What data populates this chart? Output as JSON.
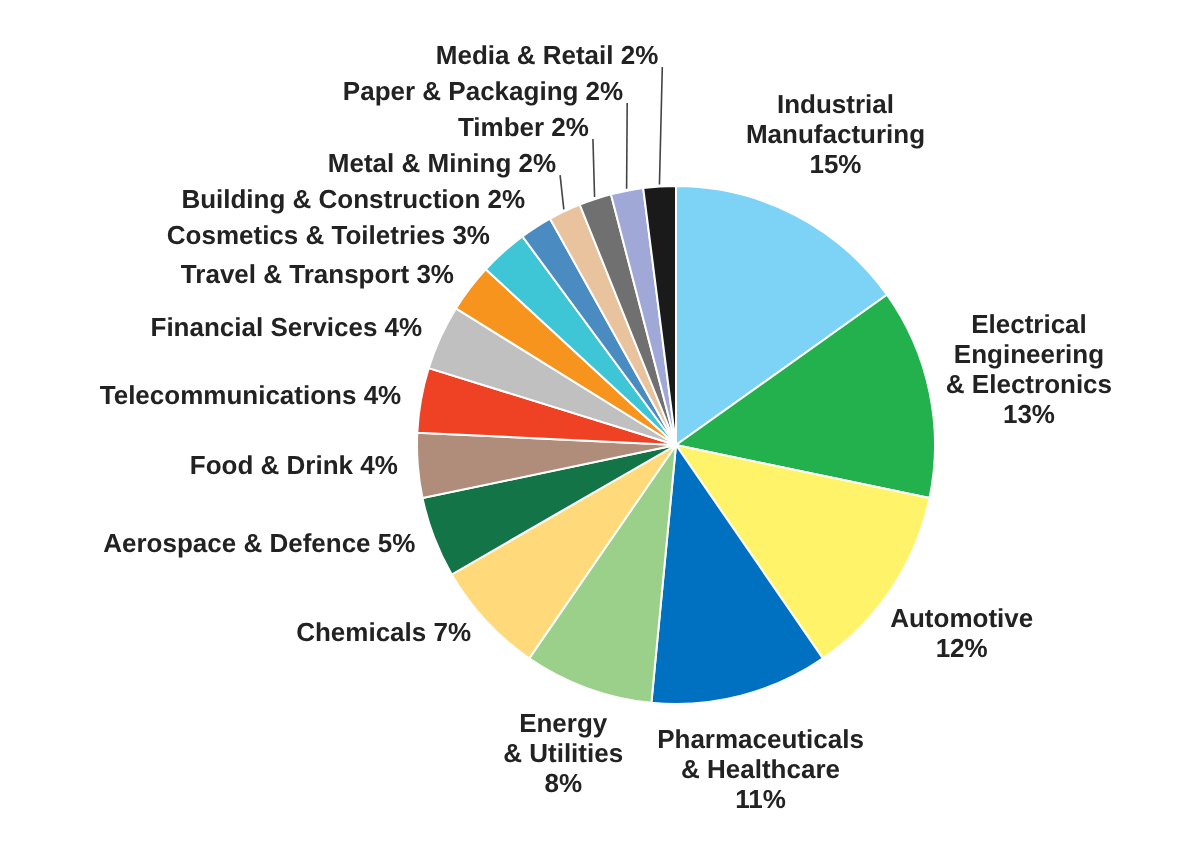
{
  "chart_data": {
    "type": "pie",
    "categories": [
      "Industrial Manufacturing",
      "Electrical Engineering & Electronics",
      "Automotive",
      "Pharmaceuticals & Healthcare",
      "Energy & Utilities",
      "Chemicals",
      "Aerospace & Defence",
      "Food & Drink",
      "Telecommunications",
      "Financial Services",
      "Travel & Transport",
      "Cosmetics & Toiletries",
      "Building & Construction",
      "Metal & Mining",
      "Timber",
      "Paper & Packaging",
      "Media & Retail"
    ],
    "values": [
      15,
      13,
      12,
      11,
      8,
      7,
      5,
      4,
      4,
      4,
      3,
      3,
      2,
      2,
      2,
      2,
      2
    ],
    "value_labels": [
      "15%",
      "13%",
      "12%",
      "11%",
      "8%",
      "7%",
      "5%",
      "4%",
      "4%",
      "4%",
      "3%",
      "3%",
      "2%",
      "2%",
      "2%",
      "2%",
      "2%"
    ],
    "colors": [
      "#7dd3f5",
      "#22b14c",
      "#fff36a",
      "#0070c0",
      "#9bd08a",
      "#ffd97a",
      "#137447",
      "#b08c7a",
      "#ef4123",
      "#c0c0c0",
      "#f7941d",
      "#3ec6d6",
      "#4a8bc2",
      "#e8c39e",
      "#707070",
      "#a0a8d8",
      "#1a1a1a"
    ]
  }
}
